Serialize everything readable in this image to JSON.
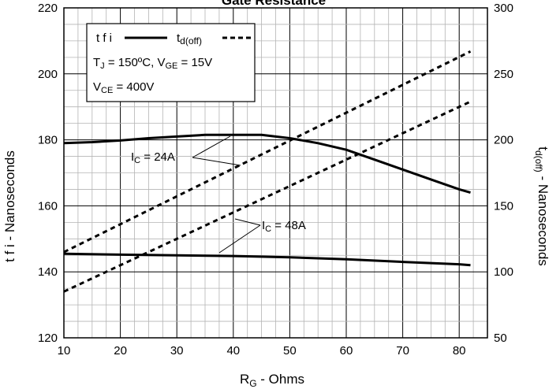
{
  "chart_data": {
    "type": "line",
    "title": "Gate Resistance",
    "xlabel": {
      "main": "R",
      "sub": "G",
      "rest": " - Ohms"
    },
    "ylabel_left": "t f i - Nanoseconds",
    "ylabel_right": {
      "main": "t",
      "sub": "d(off)",
      "rest": " - Nanoseconds"
    },
    "xlim": [
      10,
      85
    ],
    "ylim_left": [
      120,
      220
    ],
    "ylim_right": [
      50,
      300
    ],
    "xticks": [
      10,
      20,
      30,
      40,
      50,
      60,
      70,
      80
    ],
    "yticks_left": [
      120,
      140,
      160,
      180,
      200,
      220
    ],
    "yticks_right": [
      50,
      100,
      150,
      200,
      250,
      300
    ],
    "grid": true,
    "legend": {
      "position": "top-left",
      "tfi_label": "t f i",
      "td_label_main": "t",
      "td_label_sub": "d(off)",
      "cond1_T": "T",
      "cond1_T_sub": "J",
      "cond1_mid": " = 150ºC,  V",
      "cond1_V_sub": "GE",
      "cond1_end": " = 15V",
      "cond2_V": "V",
      "cond2_sub": "CE",
      "cond2_end": " = 400V"
    },
    "annotations": {
      "ic24_main": "I",
      "ic24_sub": "C",
      "ic24_end": " = 24A",
      "ic48_main": "I",
      "ic48_sub": "C",
      "ic48_end": " = 48A"
    },
    "series": [
      {
        "axis": "left",
        "style": "solid",
        "condition": "24A",
        "x": [
          10,
          15,
          20,
          25,
          30,
          35,
          40,
          45,
          50,
          55,
          60,
          65,
          70,
          75,
          80,
          82
        ],
        "y": [
          179,
          179.3,
          179.8,
          180.5,
          181,
          181.5,
          181.5,
          181.5,
          180.5,
          179,
          177,
          174,
          171,
          168,
          165,
          164
        ]
      },
      {
        "axis": "left",
        "style": "solid",
        "condition": "48A",
        "x": [
          10,
          20,
          30,
          40,
          50,
          60,
          70,
          80,
          82
        ],
        "y": [
          145.5,
          145.2,
          145,
          144.8,
          144.4,
          143.8,
          143,
          142.3,
          142
        ]
      },
      {
        "axis": "right",
        "style": "dotted",
        "condition": "24A",
        "x": [
          10,
          82
        ],
        "y": [
          115,
          267
        ]
      },
      {
        "axis": "right",
        "style": "dotted",
        "condition": "48A",
        "x": [
          10,
          82
        ],
        "y": [
          85,
          229
        ]
      }
    ]
  }
}
